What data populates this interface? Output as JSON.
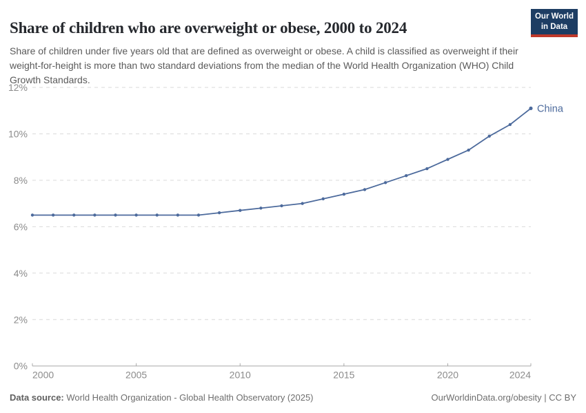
{
  "header": {
    "title": "Share of children who are overweight or obese, 2000 to 2024",
    "subtitle": "Share of children under five years old that are defined as overweight or obese. A child is classified as overweight if their weight-for-height is more than two standard deviations from the median of the World Health Organization (WHO) Child Growth Standards.",
    "logo": {
      "line1": "Our World",
      "line2": "in Data",
      "bg_color": "#1d3d63",
      "stripe_color": "#c0392b"
    }
  },
  "chart_data": {
    "type": "line",
    "title": "Share of children who are overweight or obese, 2000 to 2024",
    "xlabel": "",
    "ylabel": "",
    "xlim": [
      2000,
      2024
    ],
    "ylim": [
      0,
      12
    ],
    "x_ticks": [
      2000,
      2005,
      2010,
      2015,
      2020,
      2024
    ],
    "y_ticks": [
      0,
      2,
      4,
      6,
      8,
      10,
      12
    ],
    "y_tick_suffix": "%",
    "grid": "horizontal-dashed",
    "legend_position": "line-end-label",
    "series": [
      {
        "name": "China",
        "color": "#4C6A9C",
        "x": [
          2000,
          2001,
          2002,
          2003,
          2004,
          2005,
          2006,
          2007,
          2008,
          2009,
          2010,
          2011,
          2012,
          2013,
          2014,
          2015,
          2016,
          2017,
          2018,
          2019,
          2020,
          2021,
          2022,
          2023,
          2024
        ],
        "values": [
          6.5,
          6.5,
          6.5,
          6.5,
          6.5,
          6.5,
          6.5,
          6.5,
          6.5,
          6.6,
          6.7,
          6.8,
          6.9,
          7.0,
          7.2,
          7.4,
          7.6,
          7.9,
          8.2,
          8.5,
          8.9,
          9.3,
          9.9,
          10.4,
          11.1
        ]
      }
    ]
  },
  "colors": {
    "line": "#4C6A9C",
    "series_label": "#4C6A9C",
    "gridline": "#d9d9d9",
    "axis": "#a8a8a8",
    "tick_text": "#8b8b8b"
  },
  "footer": {
    "source_label": "Data source:",
    "source_text": " World Health Organization - Global Health Observatory (2025)",
    "rights": "OurWorldinData.org/obesity | CC BY"
  }
}
